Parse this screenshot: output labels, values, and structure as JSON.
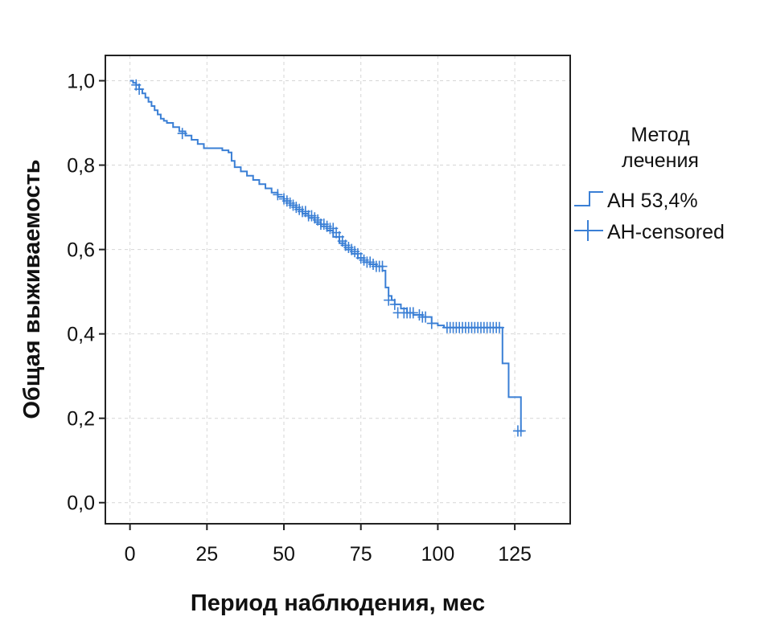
{
  "chart_data": {
    "type": "line",
    "title": "",
    "xlabel": "Период наблюдения, мес",
    "ylabel": "Общая выживаемость",
    "xlim": [
      -8,
      143
    ],
    "ylim": [
      -0.05,
      1.06
    ],
    "x_ticks": [
      0,
      25,
      50,
      75,
      100,
      125
    ],
    "x_tick_labels": [
      "0",
      "25",
      "50",
      "75",
      "100",
      "125"
    ],
    "y_ticks": [
      0.0,
      0.2,
      0.4,
      0.6,
      0.8,
      1.0
    ],
    "y_tick_labels": [
      "0,0",
      "0,2",
      "0,4",
      "0,6",
      "0,8",
      "1,0"
    ],
    "grid": true,
    "legend_title": [
      "Метод",
      "лечения"
    ],
    "legend_position": "right",
    "colors": {
      "series": "#3a7fd5",
      "frame": "#222222",
      "grid": "#d6d6d6"
    },
    "series": [
      {
        "name": "АН 53,4%",
        "style": "step",
        "x": [
          0,
          1,
          2,
          3,
          4,
          5,
          6,
          7,
          8,
          9,
          10,
          11,
          12,
          14,
          16,
          18,
          20,
          22,
          24,
          26,
          28,
          30,
          32,
          33,
          34,
          36,
          38,
          40,
          42,
          44,
          46,
          48,
          50,
          52,
          54,
          56,
          58,
          60,
          62,
          64,
          66,
          68,
          70,
          72,
          74,
          76,
          78,
          80,
          82,
          83,
          84,
          85,
          86,
          88,
          90,
          92,
          95,
          98,
          100,
          102,
          104,
          110,
          115,
          120,
          121,
          123,
          124,
          127,
          128
        ],
        "y": [
          1.0,
          0.995,
          0.99,
          0.98,
          0.97,
          0.96,
          0.95,
          0.94,
          0.93,
          0.92,
          0.91,
          0.905,
          0.9,
          0.89,
          0.88,
          0.87,
          0.86,
          0.85,
          0.84,
          0.84,
          0.84,
          0.835,
          0.83,
          0.81,
          0.795,
          0.785,
          0.775,
          0.765,
          0.755,
          0.745,
          0.735,
          0.725,
          0.715,
          0.705,
          0.695,
          0.685,
          0.675,
          0.665,
          0.655,
          0.645,
          0.63,
          0.615,
          0.6,
          0.59,
          0.58,
          0.57,
          0.565,
          0.56,
          0.55,
          0.51,
          0.49,
          0.48,
          0.47,
          0.46,
          0.45,
          0.445,
          0.44,
          0.425,
          0.42,
          0.415,
          0.415,
          0.415,
          0.415,
          0.415,
          0.33,
          0.25,
          0.25,
          0.17,
          0.17
        ]
      },
      {
        "name": "АН-censored",
        "style": "markers",
        "marker": "plus",
        "x": [
          2,
          3,
          17,
          48,
          50,
          51,
          52,
          53,
          54,
          55,
          56,
          57,
          58,
          59,
          60,
          61,
          62,
          63,
          64,
          65,
          66,
          67,
          68,
          69,
          70,
          71,
          72,
          73,
          74,
          75,
          76,
          77,
          78,
          79,
          80,
          81,
          82,
          84,
          86,
          87,
          89,
          90,
          91,
          92,
          94,
          95,
          96,
          98,
          103,
          104,
          105,
          106,
          107,
          108,
          109,
          110,
          111,
          112,
          113,
          114,
          115,
          116,
          117,
          118,
          119,
          120,
          126,
          127
        ],
        "y": [
          0.99,
          0.98,
          0.875,
          0.73,
          0.72,
          0.715,
          0.71,
          0.705,
          0.7,
          0.695,
          0.69,
          0.69,
          0.68,
          0.68,
          0.675,
          0.67,
          0.66,
          0.66,
          0.655,
          0.65,
          0.65,
          0.64,
          0.63,
          0.62,
          0.61,
          0.605,
          0.6,
          0.595,
          0.59,
          0.58,
          0.575,
          0.57,
          0.57,
          0.565,
          0.56,
          0.56,
          0.56,
          0.48,
          0.47,
          0.45,
          0.45,
          0.45,
          0.45,
          0.45,
          0.445,
          0.44,
          0.44,
          0.425,
          0.415,
          0.415,
          0.415,
          0.415,
          0.415,
          0.415,
          0.415,
          0.415,
          0.415,
          0.415,
          0.415,
          0.415,
          0.415,
          0.415,
          0.415,
          0.415,
          0.415,
          0.415,
          0.17,
          0.17
        ]
      }
    ]
  }
}
